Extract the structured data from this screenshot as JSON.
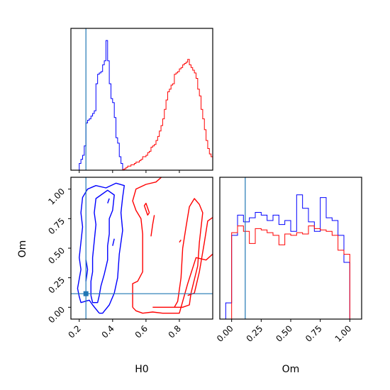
{
  "colors": {
    "series_a": "#0000ff",
    "series_b": "#ff0000",
    "truth": "#1f77b4",
    "axes": "#000000",
    "background": "#ffffff"
  },
  "chart_data": {
    "type": "corner",
    "parameters": [
      "H0",
      "Om"
    ],
    "series": [
      {
        "color": "#0000ff"
      },
      {
        "color": "#ff0000"
      }
    ],
    "truth": {
      "H0": 0.24,
      "Om": 0.115
    },
    "panels": [
      {
        "id": "hist-H0",
        "type": "step-histogram",
        "xlim": [
          0.15,
          1.0
        ],
        "xticks": [
          0.2,
          0.4,
          0.6,
          0.8
        ],
        "show_tick_labels": false,
        "ylim": [
          0,
          1.05
        ],
        "series": [
          {
            "color": "#0000ff",
            "edges": [
              0.2,
              0.21,
              0.22,
              0.23,
              0.24,
              0.25,
              0.26,
              0.27,
              0.28,
              0.29,
              0.3,
              0.31,
              0.32,
              0.33,
              0.34,
              0.35,
              0.36,
              0.37,
              0.38,
              0.39,
              0.4,
              0.41,
              0.42,
              0.43,
              0.44,
              0.45,
              0.46,
              0.47
            ],
            "values": [
              0.05,
              0.08,
              0.11,
              0.18,
              0.35,
              0.37,
              0.38,
              0.4,
              0.42,
              0.44,
              0.64,
              0.71,
              0.72,
              0.73,
              0.78,
              0.81,
              0.96,
              0.81,
              0.64,
              0.53,
              0.5,
              0.39,
              0.24,
              0.2,
              0.1,
              0.05,
              0.0
            ]
          },
          {
            "color": "#ff0000",
            "edges": [
              0.46,
              0.47,
              0.48,
              0.49,
              0.5,
              0.51,
              0.52,
              0.53,
              0.54,
              0.55,
              0.56,
              0.57,
              0.58,
              0.59,
              0.6,
              0.61,
              0.62,
              0.63,
              0.64,
              0.65,
              0.66,
              0.67,
              0.68,
              0.69,
              0.7,
              0.71,
              0.72,
              0.73,
              0.74,
              0.75,
              0.76,
              0.77,
              0.78,
              0.79,
              0.8,
              0.81,
              0.82,
              0.83,
              0.84,
              0.85,
              0.86,
              0.87,
              0.88,
              0.89,
              0.9,
              0.91,
              0.92,
              0.93,
              0.94,
              0.95,
              0.96,
              0.97,
              0.98,
              0.99,
              1.0
            ],
            "values": [
              0.005,
              0.01,
              0.02,
              0.03,
              0.03,
              0.04,
              0.04,
              0.05,
              0.06,
              0.06,
              0.07,
              0.08,
              0.1,
              0.1,
              0.11,
              0.13,
              0.14,
              0.17,
              0.18,
              0.19,
              0.22,
              0.25,
              0.29,
              0.33,
              0.38,
              0.45,
              0.52,
              0.58,
              0.6,
              0.63,
              0.64,
              0.71,
              0.72,
              0.73,
              0.75,
              0.76,
              0.78,
              0.79,
              0.8,
              0.82,
              0.78,
              0.76,
              0.74,
              0.72,
              0.68,
              0.6,
              0.55,
              0.45,
              0.38,
              0.3,
              0.22,
              0.16,
              0.12,
              0.1
            ]
          }
        ]
      },
      {
        "id": "hist-Om",
        "type": "step-histogram",
        "xlim": [
          -0.1,
          1.1
        ],
        "xticks": [
          0.0,
          0.25,
          0.5,
          0.75,
          1.0
        ],
        "xtick_labels": [
          "0.00",
          "0.25",
          "0.50",
          "0.75",
          "1.00"
        ],
        "xlabel": "Om",
        "ylim": [
          0,
          1.05
        ],
        "series": [
          {
            "color": "#0000ff",
            "edges": [
              -0.1,
              -0.05,
              0.0,
              0.05,
              0.1,
              0.15,
              0.2,
              0.25,
              0.3,
              0.35,
              0.4,
              0.45,
              0.5,
              0.55,
              0.6,
              0.65,
              0.7,
              0.75,
              0.8,
              0.85,
              0.9,
              0.95,
              1.0,
              1.05
            ],
            "values": [
              0.0,
              0.12,
              0.62,
              0.77,
              0.72,
              0.75,
              0.79,
              0.77,
              0.73,
              0.77,
              0.7,
              0.73,
              0.65,
              0.92,
              0.82,
              0.72,
              0.65,
              0.9,
              0.75,
              0.73,
              0.62,
              0.42,
              0.0
            ]
          },
          {
            "color": "#ff0000",
            "edges": [
              0.0,
              0.05,
              0.1,
              0.15,
              0.2,
              0.25,
              0.3,
              0.35,
              0.4,
              0.45,
              0.5,
              0.55,
              0.6,
              0.65,
              0.7,
              0.75,
              0.8,
              0.85,
              0.9,
              0.95,
              1.0
            ],
            "values": [
              0.64,
              0.69,
              0.65,
              0.56,
              0.67,
              0.66,
              0.64,
              0.62,
              0.55,
              0.63,
              0.62,
              0.64,
              0.63,
              0.69,
              0.67,
              0.66,
              0.65,
              0.62,
              0.51,
              0.48
            ]
          }
        ]
      },
      {
        "id": "contour-H0-Om",
        "type": "contour",
        "xlim": [
          0.15,
          1.0
        ],
        "ylim": [
          -0.1,
          1.1
        ],
        "xticks": [
          0.2,
          0.4,
          0.6,
          0.8
        ],
        "xtick_labels": [
          "0.2",
          "0.4",
          "0.6",
          "0.8"
        ],
        "yticks": [
          0.0,
          0.25,
          0.5,
          0.75,
          1.0
        ],
        "ytick_labels": [
          "0.00",
          "0.25",
          "0.50",
          "0.75",
          "1.00"
        ],
        "xlabel": "H0",
        "ylabel": "Om",
        "series": [
          {
            "color": "#0000ff",
            "paths": [
              [
                [
                  0.32,
                  -0.05
                ],
                [
                  0.28,
                  0.02
                ],
                [
                  0.26,
                  0.06
                ],
                [
                  0.21,
                  0.04
                ],
                [
                  0.2,
                  0.09
                ],
                [
                  0.19,
                  0.16
                ],
                [
                  0.2,
                  0.24
                ],
                [
                  0.21,
                  0.32
                ],
                [
                  0.2,
                  0.42
                ],
                [
                  0.21,
                  0.55
                ],
                [
                  0.22,
                  0.68
                ],
                [
                  0.21,
                  0.8
                ],
                [
                  0.22,
                  0.93
                ],
                [
                  0.25,
                  1.0
                ],
                [
                  0.3,
                  1.03
                ],
                [
                  0.36,
                  1.01
                ],
                [
                  0.42,
                  1.05
                ],
                [
                  0.47,
                  1.03
                ],
                [
                  0.46,
                  0.93
                ],
                [
                  0.45,
                  0.8
                ],
                [
                  0.46,
                  0.65
                ],
                [
                  0.44,
                  0.45
                ],
                [
                  0.43,
                  0.25
                ],
                [
                  0.41,
                  0.12
                ],
                [
                  0.38,
                  0.02
                ],
                [
                  0.34,
                  -0.05
                ],
                [
                  0.32,
                  -0.05
                ]
              ],
              [
                [
                  0.27,
                  0.1
                ],
                [
                  0.28,
                  0.04
                ],
                [
                  0.31,
                  0.04
                ],
                [
                  0.32,
                  0.1
                ],
                [
                  0.33,
                  0.18
                ],
                [
                  0.35,
                  0.28
                ],
                [
                  0.37,
                  0.4
                ],
                [
                  0.37,
                  0.52
                ],
                [
                  0.38,
                  0.62
                ],
                [
                  0.38,
                  0.75
                ],
                [
                  0.4,
                  0.82
                ],
                [
                  0.41,
                  0.95
                ],
                [
                  0.37,
                  0.99
                ],
                [
                  0.33,
                  0.95
                ],
                [
                  0.3,
                  0.92
                ],
                [
                  0.29,
                  0.8
                ],
                [
                  0.3,
                  0.7
                ],
                [
                  0.29,
                  0.56
                ],
                [
                  0.28,
                  0.42
                ],
                [
                  0.28,
                  0.3
                ],
                [
                  0.27,
                  0.22
                ],
                [
                  0.27,
                  0.1
                ]
              ],
              [
                [
                  0.24,
                  0.22
                ],
                [
                  0.25,
                  0.32
                ],
                [
                  0.24,
                  0.4
                ]
              ],
              [
                [
                  0.37,
                  0.88
                ],
                [
                  0.38,
                  0.92
                ]
              ],
              [
                [
                  0.4,
                  0.52
                ],
                [
                  0.41,
                  0.58
                ]
              ]
            ]
          },
          {
            "color": "#ff0000",
            "paths": [
              [
                [
                  0.52,
                  0.0
                ],
                [
                  0.52,
                  0.12
                ],
                [
                  0.52,
                  0.2
                ],
                [
                  0.55,
                  0.22
                ],
                [
                  0.58,
                  0.3
                ],
                [
                  0.58,
                  0.45
                ],
                [
                  0.58,
                  0.62
                ],
                [
                  0.57,
                  0.75
                ],
                [
                  0.54,
                  0.82
                ],
                [
                  0.52,
                  0.9
                ],
                [
                  0.54,
                  1.0
                ],
                [
                  0.6,
                  1.04
                ],
                [
                  0.66,
                  1.06
                ],
                [
                  0.7,
                  1.11
                ],
                [
                  0.78,
                  1.11
                ],
                [
                  0.9,
                  1.12
                ],
                [
                  1.0,
                  1.12
                ]
              ],
              [
                [
                  1.0,
                  0.45
                ],
                [
                  0.96,
                  0.4
                ],
                [
                  0.9,
                  0.42
                ],
                [
                  0.85,
                  0.2
                ],
                [
                  0.8,
                  -0.05
                ],
                [
                  0.7,
                  -0.05
                ],
                [
                  0.64,
                  -0.04
                ],
                [
                  0.58,
                  -0.05
                ],
                [
                  0.54,
                  -0.03
                ],
                [
                  0.52,
                  0.0
                ]
              ],
              [
                [
                  0.64,
                  0.0
                ],
                [
                  0.69,
                  0.0
                ],
                [
                  0.77,
                  0.0
                ],
                [
                  0.79,
                  0.05
                ],
                [
                  0.81,
                  0.25
                ],
                [
                  0.82,
                  0.5
                ],
                [
                  0.84,
                  0.68
                ],
                [
                  0.86,
                  0.85
                ],
                [
                  0.89,
                  0.92
                ],
                [
                  0.92,
                  0.87
                ],
                [
                  0.94,
                  0.8
                ],
                [
                  0.92,
                  0.55
                ],
                [
                  0.91,
                  0.35
                ],
                [
                  0.87,
                  0.12
                ],
                [
                  0.86,
                  0.02
                ],
                [
                  0.82,
                  0.0
                ],
                [
                  0.74,
                  0.0
                ],
                [
                  0.68,
                  0.0
                ],
                [
                  0.64,
                  0.0
                ]
              ],
              [
                [
                  1.0,
                  0.76
                ],
                [
                  0.97,
                  0.73
                ],
                [
                  0.95,
                  0.55
                ],
                [
                  0.92,
                  0.3
                ],
                [
                  0.89,
                  0.12
                ],
                [
                  0.85,
                  0.1
                ]
              ],
              [
                [
                  0.62,
                  0.8
                ],
                [
                  0.6,
                  0.88
                ],
                [
                  0.59,
                  0.86
                ],
                [
                  0.61,
                  0.78
                ],
                [
                  0.62,
                  0.8
                ]
              ],
              [
                [
                  0.63,
                  0.6
                ],
                [
                  0.64,
                  0.7
                ],
                [
                  0.65,
                  0.78
                ]
              ],
              [
                [
                  0.8,
                  0.55
                ],
                [
                  0.81,
                  0.57
                ]
              ]
            ]
          }
        ]
      }
    ]
  }
}
